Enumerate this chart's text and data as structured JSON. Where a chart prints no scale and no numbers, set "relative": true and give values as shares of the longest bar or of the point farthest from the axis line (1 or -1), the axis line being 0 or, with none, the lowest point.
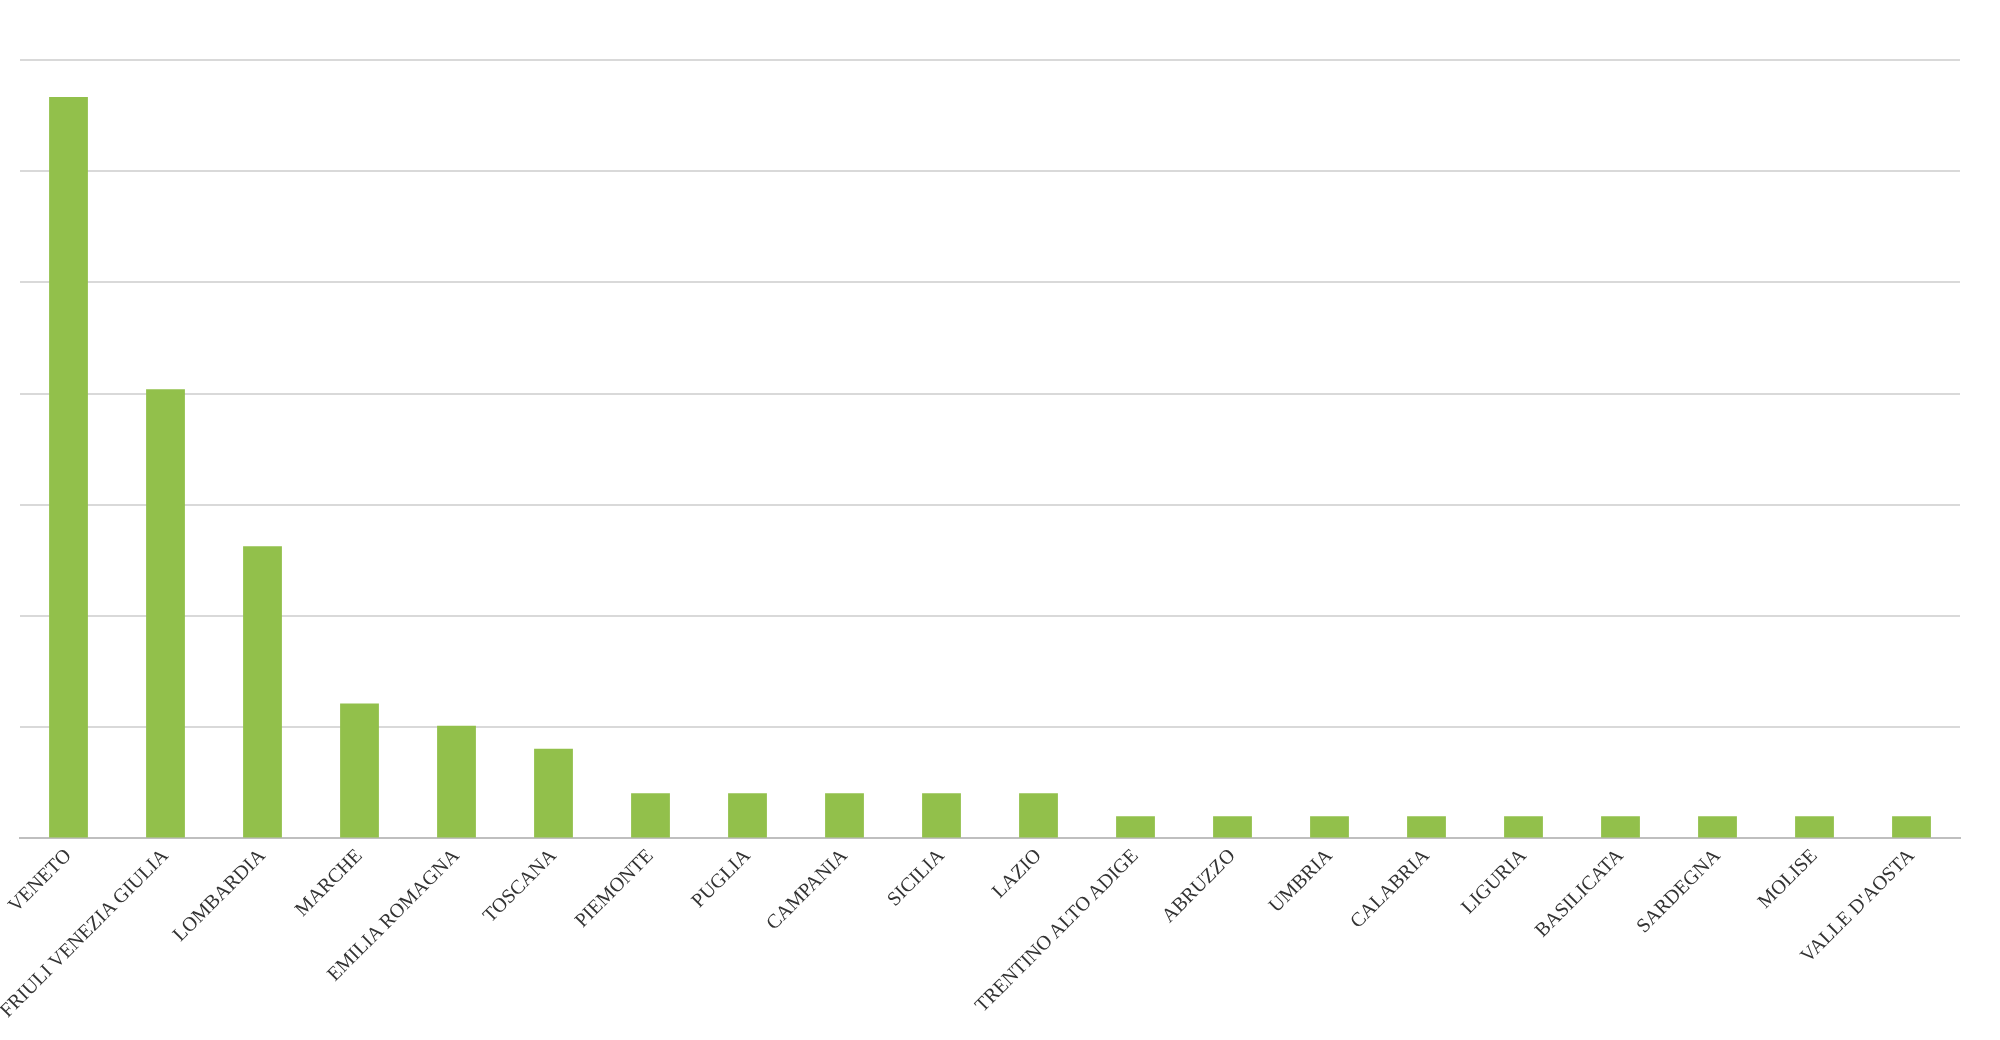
{
  "chart_data": {
    "type": "bar",
    "relative": true,
    "categories": [
      "VENETO",
      "FRIULI VENEZIA GIULIA",
      "LOMBARDIA",
      "MARCHE",
      "EMILIA ROMAGNA",
      "TOSCANA",
      "PIEMONTE",
      "PUGLIA",
      "CAMPANIA",
      "SICILIA",
      "LAZIO",
      "TRENTINO ALTO ADIGE",
      "ABRUZZO",
      "UMBRIA",
      "CALABRIA",
      "LIGURIA",
      "BASILICATA",
      "SARDEGNA",
      "MOLISE",
      "VALLE D'AOSTA"
    ],
    "values": [
      1,
      0.606,
      0.394,
      0.182,
      0.152,
      0.121,
      0.061,
      0.061,
      0.061,
      0.061,
      0.061,
      0.03,
      0.03,
      0.03,
      0.03,
      0.03,
      0.03,
      0.03,
      0.03,
      0.03
    ],
    "color": "#92c04b",
    "grid": "y",
    "tick_labels": "x",
    "legend": false
  }
}
